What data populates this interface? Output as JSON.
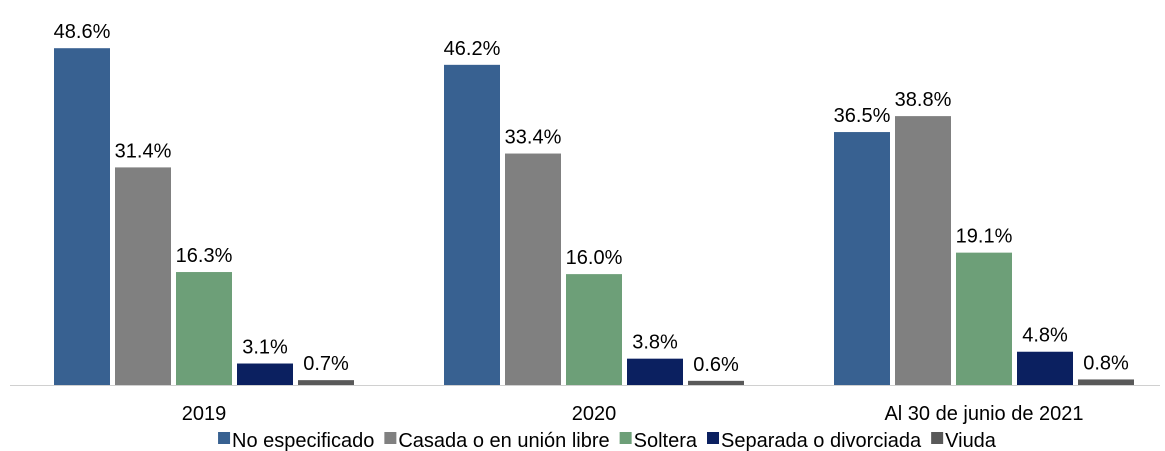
{
  "chart_data": {
    "type": "bar",
    "categories": [
      "2019",
      "2020",
      "Al 30 de junio de 2021"
    ],
    "series": [
      {
        "name": "No especificado",
        "color": "#386191",
        "values": [
          48.6,
          46.2,
          36.5
        ],
        "value_labels": [
          "48.6%",
          "46.2%",
          "36.5%"
        ]
      },
      {
        "name": "Casada o en unión libre",
        "color": "#808080",
        "values": [
          31.4,
          33.4,
          38.8
        ],
        "value_labels": [
          "31.4%",
          "33.4%",
          "38.8%"
        ]
      },
      {
        "name": "Soltera",
        "color": "#6d9f78",
        "values": [
          16.3,
          16.0,
          19.1
        ],
        "value_labels": [
          "16.3%",
          "16.0%",
          "19.1%"
        ]
      },
      {
        "name": "Separada o divorciada",
        "color": "#0b2060",
        "values": [
          3.1,
          3.8,
          4.8
        ],
        "value_labels": [
          "3.1%",
          "3.8%",
          "4.8%"
        ]
      },
      {
        "name": "Viuda",
        "color": "#595959",
        "values": [
          0.7,
          0.6,
          0.8
        ],
        "value_labels": [
          "0.7%",
          "0.6%",
          "0.8%"
        ]
      }
    ],
    "ylim": [
      0,
      50
    ],
    "legend": "bottom"
  }
}
